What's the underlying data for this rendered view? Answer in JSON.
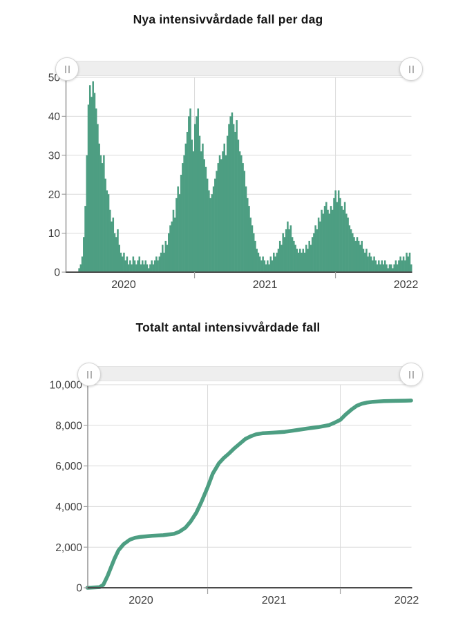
{
  "colors": {
    "series_green": "#4d9e82",
    "gridline": "#dadada",
    "x_axis_line": "#4a4a4a",
    "y_axis_line": "#8c8c8c",
    "tick_mark": "#a0a0a0",
    "tick_label": "#3e3e3e",
    "title_text": "#151515",
    "slider_track": "#eeeeee",
    "slider_handle": "#ffffff"
  },
  "chart_data": [
    {
      "type": "bar",
      "title": "Nya intensivvårdade fall per dag",
      "xlabel": "",
      "ylabel": "",
      "ylim": [
        0,
        50
      ],
      "yticks": [
        0,
        10,
        20,
        30,
        40,
        50
      ],
      "ytick_labels": [
        "0",
        "10",
        "20",
        "30",
        "40",
        "50"
      ],
      "xtick_labels": [
        "2020",
        "2021",
        "2022"
      ],
      "grid": "on",
      "series_name": "Nya intensivvårdade fall",
      "x_start_date": "2020-03-06",
      "sample_interval_days": 4,
      "values": [
        1,
        2,
        4,
        9,
        17,
        30,
        43,
        48,
        45,
        49,
        46,
        42,
        38,
        33,
        30,
        28,
        30,
        24,
        21,
        20,
        16,
        13,
        14,
        10,
        9,
        11,
        7,
        5,
        4,
        5,
        3,
        4,
        2,
        3,
        2,
        4,
        3,
        2,
        3,
        4,
        2,
        3,
        2,
        3,
        2,
        1,
        2,
        3,
        2,
        3,
        4,
        3,
        4,
        5,
        7,
        5,
        8,
        7,
        10,
        12,
        13,
        16,
        14,
        19,
        22,
        20,
        25,
        28,
        30,
        33,
        36,
        40,
        42,
        34,
        31,
        38,
        40,
        42,
        35,
        31,
        33,
        29,
        27,
        24,
        21,
        19,
        20,
        22,
        24,
        26,
        28,
        30,
        29,
        31,
        33,
        30,
        35,
        38,
        40,
        41,
        38,
        36,
        39,
        34,
        31,
        30,
        28,
        26,
        22,
        19,
        17,
        14,
        12,
        10,
        8,
        6,
        5,
        4,
        3,
        4,
        3,
        2,
        3,
        2,
        4,
        3,
        5,
        4,
        5,
        6,
        8,
        7,
        10,
        9,
        11,
        13,
        11,
        12,
        9,
        8,
        7,
        6,
        5,
        6,
        5,
        6,
        5,
        7,
        6,
        8,
        7,
        9,
        10,
        12,
        11,
        14,
        13,
        16,
        15,
        17,
        18,
        16,
        15,
        17,
        16,
        19,
        21,
        18,
        21,
        19,
        17,
        16,
        18,
        15,
        14,
        12,
        11,
        10,
        9,
        8,
        9,
        8,
        7,
        8,
        6,
        5,
        6,
        4,
        5,
        4,
        3,
        4,
        3,
        2,
        3,
        2,
        3,
        2,
        3,
        2,
        1,
        2,
        2,
        1,
        2,
        3,
        2,
        3,
        4,
        3,
        4,
        3,
        5,
        4,
        5,
        2
      ]
    },
    {
      "type": "line",
      "title": "Totalt antal intensivvårdade fall",
      "xlabel": "",
      "ylabel": "",
      "ylim": [
        0,
        10000
      ],
      "yticks": [
        0,
        2000,
        4000,
        6000,
        8000,
        10000
      ],
      "ytick_labels": [
        "0",
        "2,000",
        "4,000",
        "6,000",
        "8,000",
        "10,000"
      ],
      "xtick_labels": [
        "2020",
        "2021",
        "2022"
      ],
      "grid": "on",
      "series_name": "Totalt antal intensivvårdade fall",
      "points": [
        [
          "2020-02-05",
          0
        ],
        [
          "2020-03-10",
          30
        ],
        [
          "2020-03-20",
          150
        ],
        [
          "2020-04-01",
          600
        ],
        [
          "2020-04-10",
          1000
        ],
        [
          "2020-04-20",
          1450
        ],
        [
          "2020-05-01",
          1850
        ],
        [
          "2020-05-15",
          2150
        ],
        [
          "2020-06-01",
          2370
        ],
        [
          "2020-06-15",
          2460
        ],
        [
          "2020-07-01",
          2510
        ],
        [
          "2020-08-01",
          2560
        ],
        [
          "2020-09-01",
          2590
        ],
        [
          "2020-10-01",
          2660
        ],
        [
          "2020-10-15",
          2760
        ],
        [
          "2020-11-01",
          2960
        ],
        [
          "2020-11-15",
          3260
        ],
        [
          "2020-12-01",
          3700
        ],
        [
          "2020-12-15",
          4230
        ],
        [
          "2021-01-01",
          4950
        ],
        [
          "2021-01-15",
          5620
        ],
        [
          "2021-02-01",
          6130
        ],
        [
          "2021-02-15",
          6400
        ],
        [
          "2021-03-01",
          6620
        ],
        [
          "2021-03-15",
          6860
        ],
        [
          "2021-04-01",
          7120
        ],
        [
          "2021-04-15",
          7330
        ],
        [
          "2021-05-01",
          7470
        ],
        [
          "2021-05-15",
          7560
        ],
        [
          "2021-06-01",
          7610
        ],
        [
          "2021-07-01",
          7640
        ],
        [
          "2021-08-01",
          7680
        ],
        [
          "2021-09-01",
          7760
        ],
        [
          "2021-10-01",
          7840
        ],
        [
          "2021-11-01",
          7910
        ],
        [
          "2021-12-01",
          8010
        ],
        [
          "2021-12-15",
          8120
        ],
        [
          "2022-01-01",
          8270
        ],
        [
          "2022-01-15",
          8520
        ],
        [
          "2022-02-01",
          8780
        ],
        [
          "2022-02-15",
          8960
        ],
        [
          "2022-03-01",
          9060
        ],
        [
          "2022-03-15",
          9120
        ],
        [
          "2022-04-01",
          9160
        ],
        [
          "2022-05-01",
          9190
        ],
        [
          "2022-06-01",
          9205
        ],
        [
          "2022-07-01",
          9215
        ],
        [
          "2022-07-15",
          9220
        ]
      ]
    }
  ]
}
